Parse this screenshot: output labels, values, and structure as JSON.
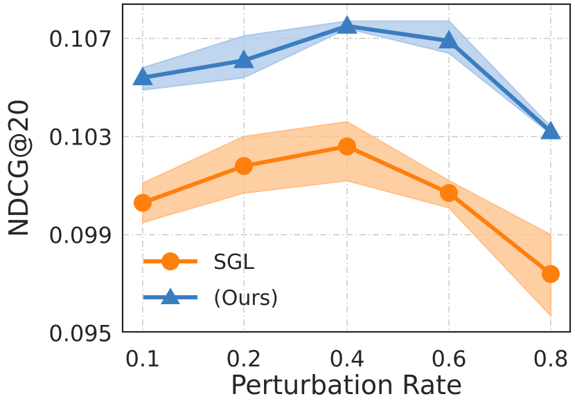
{
  "chart_data": {
    "type": "line",
    "title": "",
    "xlabel": "Perturbation Rate",
    "ylabel": "NDCG@20",
    "x": [
      0.1,
      0.2,
      0.4,
      0.6,
      0.8
    ],
    "x_tick_labels": [
      "0.1",
      "0.2",
      "0.4",
      "0.6",
      "0.8"
    ],
    "y_ticks": [
      0.095,
      0.099,
      0.103,
      0.107
    ],
    "y_tick_labels": [
      "0.095",
      "0.099",
      "0.103",
      "0.107"
    ],
    "ylim": [
      0.095,
      0.1088
    ],
    "grid": true,
    "legend_position": "lower-left",
    "series": [
      {
        "name": "SGL",
        "marker": "circle",
        "color": "#ff7f0e",
        "band_color": "#ffbf86",
        "values": [
          0.1003,
          0.1018,
          0.1026,
          0.1007,
          0.0974
        ],
        "lower": [
          0.0995,
          0.1007,
          0.1012,
          0.1001,
          0.0957
        ],
        "upper": [
          0.1011,
          0.103,
          0.1036,
          0.1012,
          0.099
        ]
      },
      {
        "name": "(Ours)",
        "marker": "triangle",
        "color": "#3a7dc0",
        "band_color": "#aac8e8",
        "values": [
          0.1054,
          0.1061,
          0.1075,
          0.1069,
          0.1032
        ],
        "lower": [
          0.1049,
          0.1054,
          0.1074,
          0.1064,
          0.1031
        ],
        "upper": [
          0.1058,
          0.1071,
          0.1077,
          0.1077,
          0.1034
        ]
      }
    ]
  }
}
